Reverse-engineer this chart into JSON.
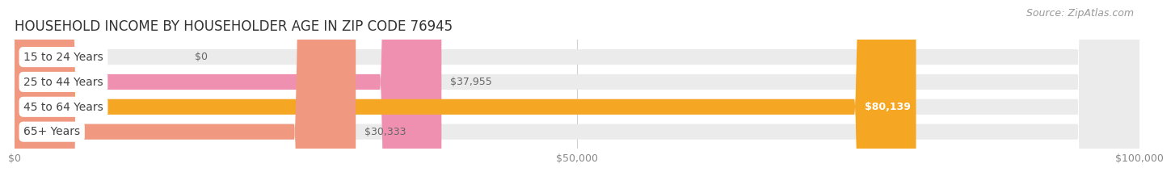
{
  "title": "HOUSEHOLD INCOME BY HOUSEHOLDER AGE IN ZIP CODE 76945",
  "source": "Source: ZipAtlas.com",
  "categories": [
    "15 to 24 Years",
    "25 to 44 Years",
    "45 to 64 Years",
    "65+ Years"
  ],
  "values": [
    0,
    37955,
    80139,
    30333
  ],
  "bar_colors": [
    "#b0b0d8",
    "#f090b0",
    "#f5a623",
    "#f09880"
  ],
  "bar_label_colors": [
    "#666666",
    "#666666",
    "#ffffff",
    "#666666"
  ],
  "bar_bg_color": "#ebebeb",
  "background_color": "#ffffff",
  "xlim": [
    0,
    100000
  ],
  "xticks": [
    0,
    50000,
    100000
  ],
  "xticklabels": [
    "$0",
    "$50,000",
    "$100,000"
  ],
  "value_labels": [
    "$0",
    "$37,955",
    "$80,139",
    "$30,333"
  ],
  "title_fontsize": 12,
  "source_fontsize": 9,
  "tick_fontsize": 9,
  "bar_label_fontsize": 9,
  "category_fontsize": 10
}
